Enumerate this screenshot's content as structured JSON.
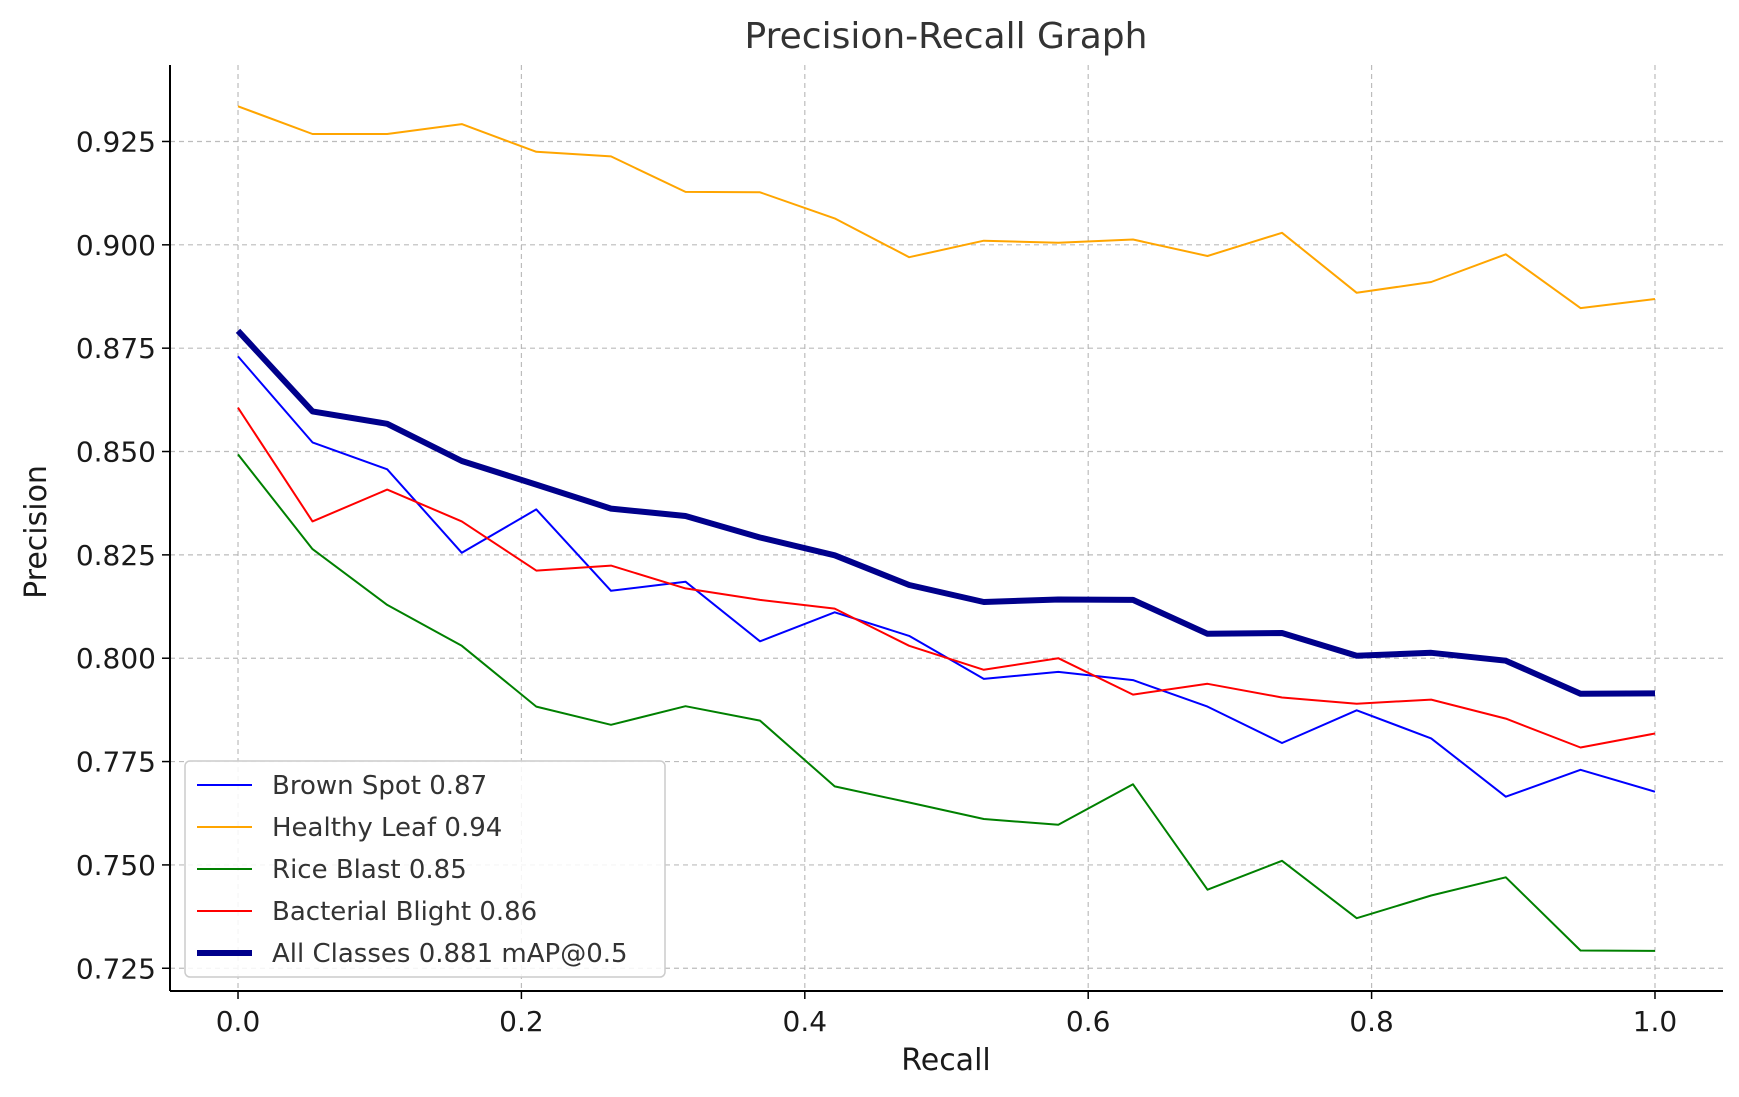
{
  "chart_data": {
    "type": "line",
    "title": "Precision-Recall Graph",
    "xlabel": "Recall",
    "ylabel": "Precision",
    "xlim": [
      -0.048,
      1.048
    ],
    "ylim": [
      0.7195,
      0.9435
    ],
    "xticks": [
      0.0,
      0.2,
      0.4,
      0.6,
      0.8,
      1.0
    ],
    "xtick_labels": [
      "0.0",
      "0.2",
      "0.4",
      "0.6",
      "0.8",
      "1.0"
    ],
    "yticks": [
      0.725,
      0.75,
      0.775,
      0.8,
      0.825,
      0.85,
      0.875,
      0.9,
      0.925
    ],
    "ytick_labels": [
      "0.725",
      "0.750",
      "0.775",
      "0.800",
      "0.825",
      "0.850",
      "0.875",
      "0.900",
      "0.925"
    ],
    "grid": true,
    "legend_position": "lower-left",
    "x": [
      0.0,
      0.0526,
      0.1053,
      0.1579,
      0.2105,
      0.2632,
      0.3158,
      0.3684,
      0.4211,
      0.4737,
      0.5263,
      0.5789,
      0.6316,
      0.6842,
      0.7368,
      0.7895,
      0.8421,
      0.8947,
      0.9474,
      1.0
    ],
    "series": [
      {
        "name": "Brown Spot 0.87",
        "color": "#0000ff",
        "width": 2,
        "values": [
          0.873,
          0.8522,
          0.8457,
          0.8255,
          0.836,
          0.8163,
          0.8185,
          0.8041,
          0.8111,
          0.8054,
          0.795,
          0.7967,
          0.7947,
          0.7883,
          0.7795,
          0.7874,
          0.7806,
          0.7665,
          0.773,
          0.7677
        ]
      },
      {
        "name": "Healthy Leaf 0.94",
        "color": "#ffa500",
        "width": 2,
        "values": [
          0.9335,
          0.9268,
          0.9268,
          0.9292,
          0.9225,
          0.9214,
          0.9128,
          0.9127,
          0.9064,
          0.897,
          0.901,
          0.9005,
          0.9013,
          0.8973,
          0.9029,
          0.8884,
          0.891,
          0.8977,
          0.8847,
          0.8869
        ]
      },
      {
        "name": "Rice Blast 0.85",
        "color": "#008000",
        "width": 2,
        "values": [
          0.8493,
          0.8264,
          0.8129,
          0.803,
          0.7883,
          0.7839,
          0.7884,
          0.7849,
          0.769,
          0.7651,
          0.7611,
          0.7597,
          0.7695,
          0.744,
          0.751,
          0.7371,
          0.7426,
          0.747,
          0.7293,
          0.7292
        ]
      },
      {
        "name": "Bacterial Blight 0.86",
        "color": "#ff0000",
        "width": 2,
        "values": [
          0.8606,
          0.8331,
          0.8408,
          0.8331,
          0.8212,
          0.8224,
          0.8169,
          0.8141,
          0.812,
          0.803,
          0.7972,
          0.8,
          0.7912,
          0.7938,
          0.7905,
          0.789,
          0.79,
          0.7854,
          0.7784,
          0.7818
        ]
      },
      {
        "name": "All Classes 0.881 mAP@0.5",
        "color": "#00008b",
        "width": 6,
        "values": [
          0.8792,
          0.8597,
          0.8567,
          0.8477,
          0.842,
          0.8362,
          0.8344,
          0.8292,
          0.8249,
          0.8177,
          0.8136,
          0.8142,
          0.8141,
          0.8059,
          0.8061,
          0.8006,
          0.8013,
          0.7994,
          0.7914,
          0.7915
        ]
      }
    ]
  }
}
